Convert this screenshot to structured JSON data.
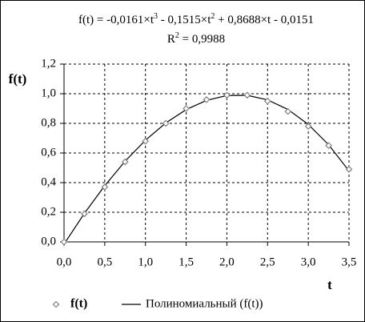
{
  "chart_data": {
    "type": "scatter",
    "equation": [
      "f(t) = -0,0161×t",
      "3",
      " - 0,1515×t",
      "2",
      " + 0,8688×t - 0,0151"
    ],
    "r_squared": [
      "R",
      "2",
      " = 0,9988"
    ],
    "x_label": "t",
    "y_label": "f(t)",
    "xlim": [
      0,
      3.5
    ],
    "ylim": [
      0,
      1.2
    ],
    "xticks": [
      {
        "value": 0,
        "label": "0,0"
      },
      {
        "value": 0.5,
        "label": "0,5"
      },
      {
        "value": 1,
        "label": "1,0"
      },
      {
        "value": 1.5,
        "label": "1,5"
      },
      {
        "value": 2,
        "label": "2,0"
      },
      {
        "value": 2.5,
        "label": "2,5"
      },
      {
        "value": 3,
        "label": "3,0"
      },
      {
        "value": 3.5,
        "label": "3,5"
      }
    ],
    "yticks": [
      {
        "value": 0,
        "label": "0,0"
      },
      {
        "value": 0.2,
        "label": "0,2"
      },
      {
        "value": 0.4,
        "label": "0,4"
      },
      {
        "value": 0.6,
        "label": "0,6"
      },
      {
        "value": 0.8,
        "label": "0,8"
      },
      {
        "value": 1,
        "label": "1,0"
      },
      {
        "value": 1.2,
        "label": "1,2"
      }
    ],
    "grid": true,
    "series": [
      {
        "name": "f(t)",
        "type": "scatter",
        "color": "#808080",
        "x": [
          0,
          0.25,
          0.5,
          0.75,
          1,
          1.25,
          1.5,
          1.75,
          2,
          2.25,
          2.5,
          2.75,
          3,
          3.25,
          3.5
        ],
        "values": [
          0,
          0.19,
          0.37,
          0.54,
          0.68,
          0.8,
          0.9,
          0.96,
          0.99,
          0.99,
          0.95,
          0.88,
          0.78,
          0.65,
          0.49
        ]
      },
      {
        "name": "Полиномиальный (f(t))",
        "type": "line",
        "color": "#000000",
        "x": [
          0,
          0.25,
          0.5,
          0.75,
          1,
          1.25,
          1.5,
          1.75,
          2,
          2.25,
          2.5,
          2.75,
          3,
          3.25,
          3.5
        ],
        "values": [
          -0.0151,
          0.1924,
          0.3794,
          0.5445,
          0.6861,
          0.8027,
          0.8929,
          0.955,
          0.9877,
          0.9893,
          0.9585,
          0.8935,
          0.7931,
          0.6556,
          0.4795
        ]
      }
    ]
  }
}
